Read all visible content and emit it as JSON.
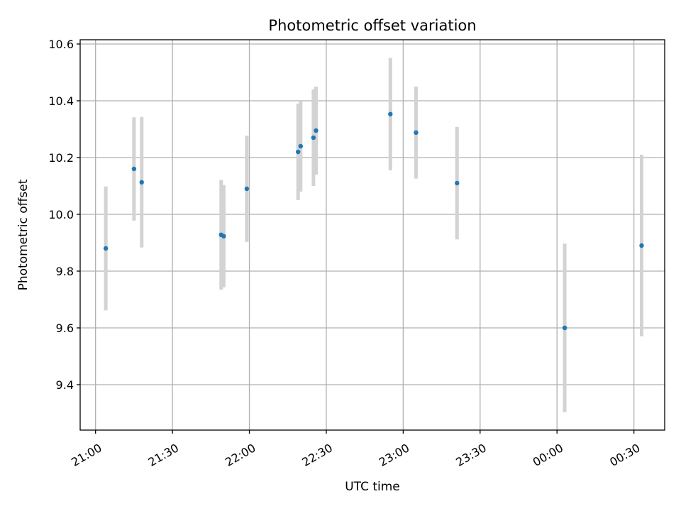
{
  "chart_data": {
    "type": "scatter",
    "title": "Photometric offset variation",
    "xlabel": "UTC time",
    "ylabel": "Photometric offset",
    "x_tick_labels": [
      "21:00",
      "21:30",
      "22:00",
      "22:30",
      "23:00",
      "23:30",
      "00:00",
      "00:30"
    ],
    "y_tick_labels": [
      "9.4",
      "9.6",
      "9.8",
      "10.0",
      "10.2",
      "10.4",
      "10.6"
    ],
    "x_ticks_minutes_after_2100": [
      0,
      30,
      60,
      90,
      120,
      150,
      180,
      210
    ],
    "y_ticks": [
      9.4,
      9.6,
      9.8,
      10.0,
      10.2,
      10.4,
      10.6
    ],
    "xlim_minutes_after_2100": [
      -6,
      222
    ],
    "ylim": [
      9.24,
      10.615
    ],
    "grid": true,
    "marker_color": "#1f77b4",
    "errorbar_color": "#d3d3d3",
    "points": [
      {
        "time": "21:04",
        "y": 9.88,
        "yerr": 0.218
      },
      {
        "time": "21:15",
        "y": 10.16,
        "yerr": 0.182
      },
      {
        "time": "21:18",
        "y": 10.113,
        "yerr": 0.23
      },
      {
        "time": "21:49",
        "y": 9.928,
        "yerr": 0.193
      },
      {
        "time": "21:50",
        "y": 9.923,
        "yerr": 0.18
      },
      {
        "time": "21:59",
        "y": 10.09,
        "yerr": 0.187
      },
      {
        "time": "22:19",
        "y": 10.22,
        "yerr": 0.17
      },
      {
        "time": "22:20",
        "y": 10.24,
        "yerr": 0.16
      },
      {
        "time": "22:25",
        "y": 10.27,
        "yerr": 0.17
      },
      {
        "time": "22:26",
        "y": 10.295,
        "yerr": 0.155
      },
      {
        "time": "22:55",
        "y": 10.353,
        "yerr": 0.198
      },
      {
        "time": "23:05",
        "y": 10.288,
        "yerr": 0.162
      },
      {
        "time": "23:21",
        "y": 10.11,
        "yerr": 0.198
      },
      {
        "time": "00:03",
        "y": 9.6,
        "yerr": 0.297
      },
      {
        "time": "00:33",
        "y": 9.89,
        "yerr": 0.32
      }
    ]
  }
}
